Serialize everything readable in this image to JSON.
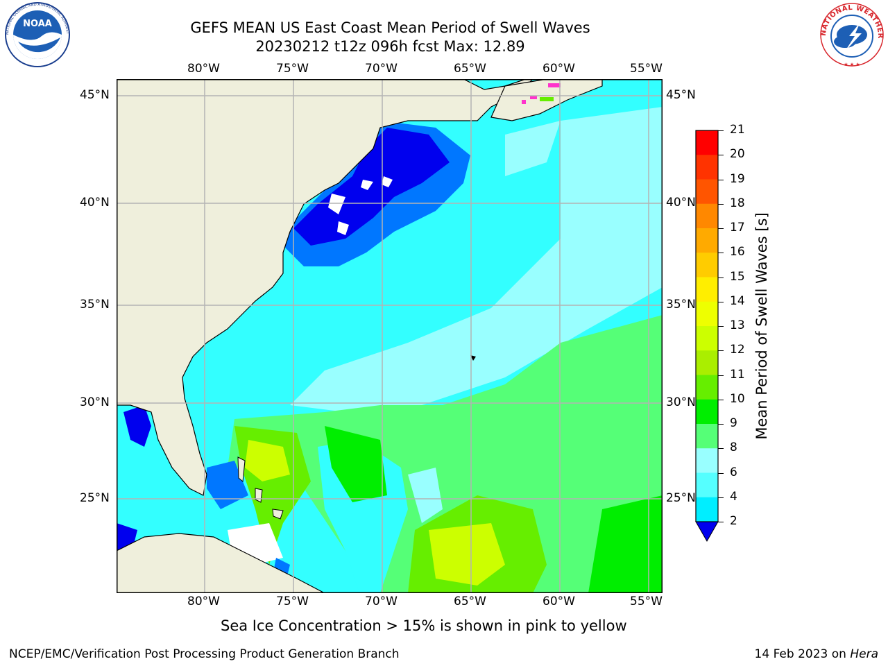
{
  "header": {
    "title_line1": "GEFS MEAN US East Coast Mean Period of Swell Waves",
    "title_line2": "20230212 t12z 096h fcst   Max: 12.89"
  },
  "logos": {
    "noaa_text": "NOAA",
    "noaa_ring": "NATIONAL OCEANIC AND ATMOSPHERIC ADMINISTRATION · U.S. DEPARTMENT OF COMMERCE",
    "nws_ring": "NATIONAL WEATHER SERVICE"
  },
  "map": {
    "lon_labels": [
      "80°W",
      "75°W",
      "70°W",
      "65°W",
      "60°W",
      "55°W"
    ],
    "lat_labels": [
      "45°N",
      "40°N",
      "35°N",
      "30°N",
      "25°N"
    ],
    "colors": {
      "land": "#efefdc",
      "ocean_base": "#33ffff",
      "grid": "#b4b4b4",
      "coast": "#000000",
      "missing": "#ffffff",
      "sea_ice": "#ff33cc"
    }
  },
  "colorbar": {
    "title": "Mean Period of Swell Waves [s]",
    "labels": [
      "21",
      "20",
      "19",
      "18",
      "17",
      "16",
      "15",
      "14",
      "13",
      "12",
      "11",
      "10",
      "9",
      "8",
      "6",
      "4",
      "2"
    ],
    "colors": [
      "#ff0000",
      "#ff3300",
      "#ff5500",
      "#ff8800",
      "#ffaa00",
      "#ffcc00",
      "#ffee00",
      "#eeff00",
      "#ccff00",
      "#aaee00",
      "#66ee00",
      "#00ee00",
      "#55ff77",
      "#99ffff",
      "#55ffff",
      "#00eeff",
      "#0077ff"
    ],
    "under_color": "#0000ee"
  },
  "notes": {
    "sea_ice": "Sea Ice Concentration > 15% is shown in pink to yellow",
    "footer_left": "NCEP/EMC/Verification Post Processing Product Generation Branch",
    "footer_right_prefix": "14 Feb 2023 on ",
    "footer_right_host": "Hera"
  }
}
